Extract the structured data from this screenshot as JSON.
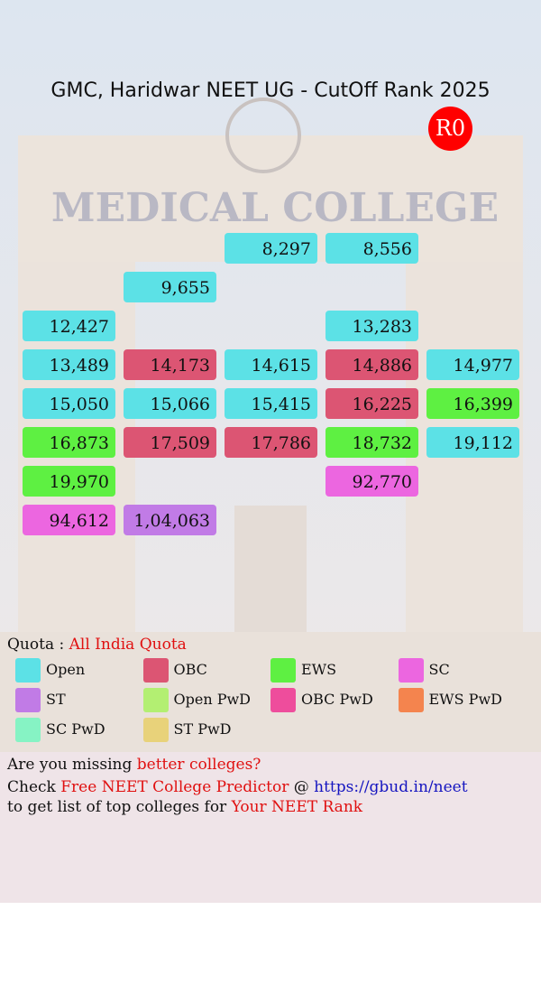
{
  "header": {
    "title": "GMC, Haridwar NEET UG - CutOff Rank 2025",
    "round": "R0"
  },
  "grid": [
    [
      null,
      null,
      {
        "text": "8,297",
        "color": "#5ce1e6"
      },
      {
        "text": "8,556",
        "color": "#5ce1e6"
      },
      null
    ],
    [
      null,
      {
        "text": "9,655",
        "color": "#5ce1e6"
      },
      null,
      null,
      null
    ],
    [
      {
        "text": "12,427",
        "color": "#5ce1e6"
      },
      null,
      null,
      {
        "text": "13,283",
        "color": "#5ce1e6"
      },
      null
    ],
    [
      {
        "text": "13,489",
        "color": "#5ce1e6"
      },
      {
        "text": "14,173",
        "color": "#dc5573"
      },
      {
        "text": "14,615",
        "color": "#5ce1e6"
      },
      {
        "text": "14,886",
        "color": "#dc5573"
      },
      {
        "text": "14,977",
        "color": "#5ce1e6"
      }
    ],
    [
      {
        "text": "15,050",
        "color": "#5ce1e6"
      },
      {
        "text": "15,066",
        "color": "#5ce1e6"
      },
      {
        "text": "15,415",
        "color": "#5ce1e6"
      },
      {
        "text": "16,225",
        "color": "#dc5573"
      },
      {
        "text": "16,399",
        "color": "#5ef042"
      }
    ],
    [
      {
        "text": "16,873",
        "color": "#5ef042"
      },
      {
        "text": "17,509",
        "color": "#dc5573"
      },
      {
        "text": "17,786",
        "color": "#dc5573"
      },
      {
        "text": "18,732",
        "color": "#5ef042"
      },
      {
        "text": "19,112",
        "color": "#5ce1e6"
      }
    ],
    [
      {
        "text": "19,970",
        "color": "#5ef042"
      },
      null,
      null,
      {
        "text": "92,770",
        "color": "#ec66e0"
      },
      null
    ],
    [
      {
        "text": "94,612",
        "color": "#ec66e0"
      },
      {
        "text": "1,04,063",
        "color": "#c17be6"
      },
      null,
      null,
      null
    ]
  ],
  "quota": {
    "label": "Quota :",
    "value": "All India Quota"
  },
  "legend": [
    {
      "name": "Open",
      "color": "#5ce1e6"
    },
    {
      "name": "OBC",
      "color": "#dc5573"
    },
    {
      "name": "EWS",
      "color": "#5ef042"
    },
    {
      "name": "SC",
      "color": "#ec66e0"
    },
    {
      "name": "ST",
      "color": "#c17be6"
    },
    {
      "name": "Open PwD",
      "color": "#b3ef72"
    },
    {
      "name": "OBC PwD",
      "color": "#ee4d9c"
    },
    {
      "name": "EWS PwD",
      "color": "#f4844e"
    },
    {
      "name": "SC PwD",
      "color": "#86f3c4"
    },
    {
      "name": "ST PwD",
      "color": "#e8d27a"
    }
  ],
  "footer": {
    "line1": [
      "Are you missing",
      "better colleges?"
    ],
    "line2": [
      "Check",
      "Free NEET College Predictor",
      "@",
      "https://gbud.in/neet"
    ],
    "line3": [
      "to get list of top colleges for",
      "Your NEET Rank"
    ]
  }
}
